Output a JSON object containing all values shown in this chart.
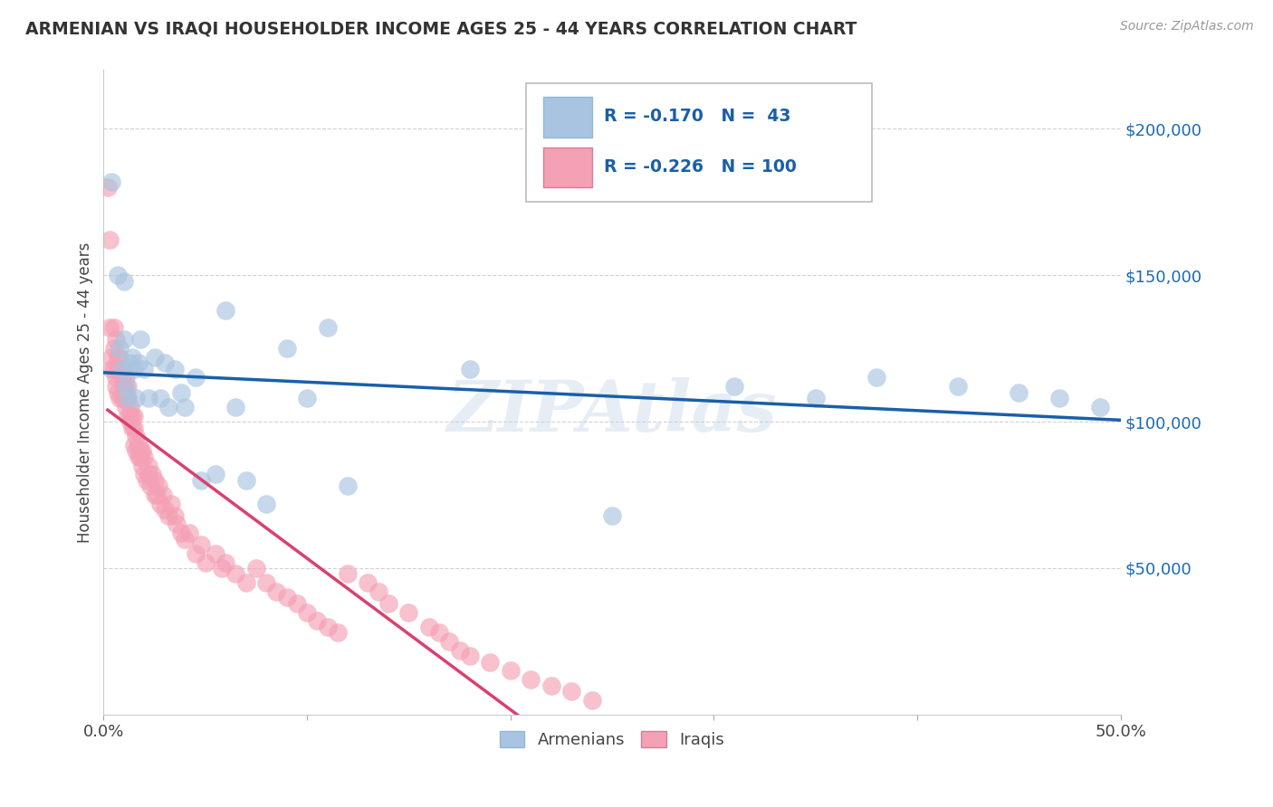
{
  "title": "ARMENIAN VS IRAQI HOUSEHOLDER INCOME AGES 25 - 44 YEARS CORRELATION CHART",
  "source": "Source: ZipAtlas.com",
  "ylabel": "Householder Income Ages 25 - 44 years",
  "xlim": [
    0.0,
    0.5
  ],
  "ylim": [
    0,
    220000
  ],
  "yticks": [
    0,
    50000,
    100000,
    150000,
    200000
  ],
  "ytick_labels": [
    "",
    "$50,000",
    "$100,000",
    "$150,000",
    "$200,000"
  ],
  "xticks": [
    0.0,
    0.1,
    0.2,
    0.3,
    0.4,
    0.5
  ],
  "xtick_labels": [
    "0.0%",
    "",
    "",
    "",
    "",
    "50.0%"
  ],
  "armenian_R": -0.17,
  "armenian_N": 43,
  "iraqi_R": -0.226,
  "iraqi_N": 100,
  "armenian_color": "#a8c4e0",
  "iraqi_color": "#f4a0b5",
  "armenian_line_color": "#1a5fa8",
  "iraqi_line_color": "#d94070",
  "watermark": "ZIPAtlas",
  "background_color": "#ffffff",
  "grid_color": "#cccccc",
  "title_color": "#444444",
  "legend_armenian_label": "Armenians",
  "legend_iraqi_label": "Iraqis",
  "armenian_x": [
    0.004,
    0.007,
    0.008,
    0.009,
    0.01,
    0.01,
    0.011,
    0.012,
    0.013,
    0.014,
    0.015,
    0.016,
    0.017,
    0.018,
    0.02,
    0.022,
    0.025,
    0.028,
    0.03,
    0.032,
    0.035,
    0.038,
    0.04,
    0.045,
    0.048,
    0.055,
    0.06,
    0.065,
    0.07,
    0.08,
    0.09,
    0.1,
    0.11,
    0.12,
    0.18,
    0.25,
    0.31,
    0.35,
    0.38,
    0.42,
    0.45,
    0.47,
    0.49
  ],
  "armenian_y": [
    182000,
    150000,
    125000,
    118000,
    128000,
    148000,
    112000,
    108000,
    120000,
    122000,
    118000,
    108000,
    120000,
    128000,
    118000,
    108000,
    122000,
    108000,
    120000,
    105000,
    118000,
    110000,
    105000,
    115000,
    80000,
    82000,
    138000,
    105000,
    80000,
    72000,
    125000,
    108000,
    132000,
    78000,
    118000,
    68000,
    112000,
    108000,
    115000,
    112000,
    110000,
    108000,
    105000
  ],
  "iraqi_x": [
    0.002,
    0.003,
    0.003,
    0.004,
    0.004,
    0.005,
    0.005,
    0.005,
    0.006,
    0.006,
    0.006,
    0.007,
    0.007,
    0.007,
    0.008,
    0.008,
    0.008,
    0.009,
    0.009,
    0.009,
    0.01,
    0.01,
    0.01,
    0.01,
    0.011,
    0.011,
    0.011,
    0.012,
    0.012,
    0.012,
    0.013,
    0.013,
    0.013,
    0.014,
    0.014,
    0.015,
    0.015,
    0.015,
    0.016,
    0.016,
    0.017,
    0.017,
    0.018,
    0.018,
    0.019,
    0.019,
    0.02,
    0.02,
    0.021,
    0.022,
    0.022,
    0.023,
    0.024,
    0.025,
    0.025,
    0.026,
    0.027,
    0.028,
    0.029,
    0.03,
    0.032,
    0.033,
    0.035,
    0.036,
    0.038,
    0.04,
    0.042,
    0.045,
    0.048,
    0.05,
    0.055,
    0.058,
    0.06,
    0.065,
    0.07,
    0.075,
    0.08,
    0.085,
    0.09,
    0.095,
    0.1,
    0.105,
    0.11,
    0.115,
    0.12,
    0.13,
    0.135,
    0.14,
    0.15,
    0.16,
    0.165,
    0.17,
    0.175,
    0.18,
    0.19,
    0.2,
    0.21,
    0.22,
    0.23,
    0.24
  ],
  "iraqi_y": [
    180000,
    162000,
    132000,
    118000,
    122000,
    118000,
    125000,
    132000,
    115000,
    112000,
    128000,
    110000,
    118000,
    122000,
    108000,
    118000,
    122000,
    108000,
    115000,
    118000,
    112000,
    108000,
    112000,
    118000,
    105000,
    108000,
    115000,
    102000,
    108000,
    112000,
    100000,
    102000,
    105000,
    98000,
    102000,
    92000,
    98000,
    102000,
    90000,
    95000,
    88000,
    92000,
    90000,
    88000,
    85000,
    90000,
    82000,
    88000,
    80000,
    82000,
    85000,
    78000,
    82000,
    75000,
    80000,
    75000,
    78000,
    72000,
    75000,
    70000,
    68000,
    72000,
    68000,
    65000,
    62000,
    60000,
    62000,
    55000,
    58000,
    52000,
    55000,
    50000,
    52000,
    48000,
    45000,
    50000,
    45000,
    42000,
    40000,
    38000,
    35000,
    32000,
    30000,
    28000,
    48000,
    45000,
    42000,
    38000,
    35000,
    30000,
    28000,
    25000,
    22000,
    20000,
    18000,
    15000,
    12000,
    10000,
    8000,
    5000
  ]
}
